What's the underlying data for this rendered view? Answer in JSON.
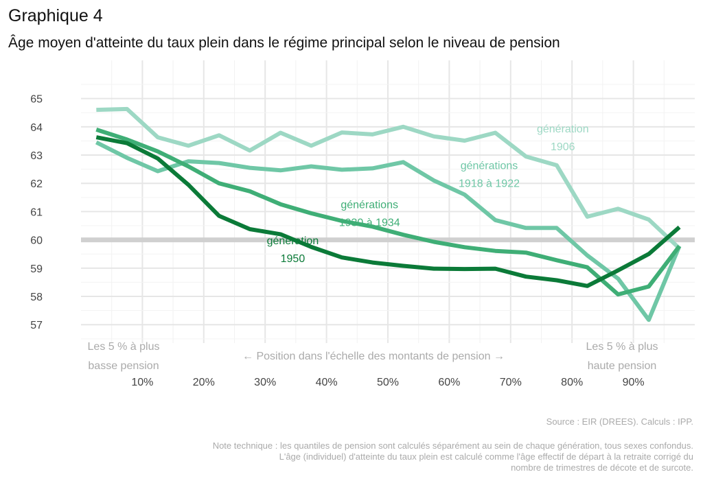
{
  "header": {
    "title": "Graphique 4",
    "subtitle": "Âge moyen d'atteinte du taux plein dans le régime principal selon le niveau de pension"
  },
  "chart_data": {
    "type": "line",
    "x": [
      2.5,
      7.5,
      12.5,
      17.5,
      22.5,
      27.5,
      32.5,
      37.5,
      42.5,
      47.5,
      52.5,
      57.5,
      62.5,
      67.5,
      72.5,
      77.5,
      82.5,
      87.5,
      92.5,
      97.5
    ],
    "x_ticks": [
      10,
      20,
      30,
      40,
      50,
      60,
      70,
      80,
      90
    ],
    "x_tick_labels": [
      "10%",
      "20%",
      "30%",
      "40%",
      "50%",
      "60%",
      "70%",
      "80%",
      "90%"
    ],
    "xlim": [
      0,
      100
    ],
    "y_ticks": [
      57,
      58,
      59,
      60,
      61,
      62,
      63,
      64,
      65
    ],
    "y_tick_labels": [
      "57",
      "58",
      "59",
      "60",
      "61",
      "62",
      "63",
      "64",
      "65"
    ],
    "ylim": [
      56.35,
      66.35
    ],
    "grid": true,
    "reference_line": {
      "y": 60,
      "color": "#d0d0d0"
    },
    "series": [
      {
        "name_lines": [
          "génération",
          "1906"
        ],
        "color": "#9dd8c4",
        "label_pos": [
          78.5,
          63.8
        ],
        "values": [
          64.6,
          64.63,
          63.63,
          63.33,
          63.7,
          63.16,
          63.79,
          63.33,
          63.8,
          63.73,
          64.0,
          63.66,
          63.51,
          63.79,
          62.95,
          62.64,
          60.82,
          61.1,
          60.72,
          59.7
        ]
      },
      {
        "name_lines": [
          "générations",
          "1918 à 1922"
        ],
        "color": "#6fc7a6",
        "label_pos": [
          66.5,
          62.5
        ],
        "values": [
          63.45,
          62.9,
          62.43,
          62.78,
          62.72,
          62.55,
          62.46,
          62.6,
          62.48,
          62.53,
          62.75,
          62.1,
          61.6,
          60.7,
          60.42,
          60.42,
          59.45,
          58.63,
          57.17,
          59.78
        ]
      },
      {
        "name_lines": [
          "générations",
          "1930 à 1934"
        ],
        "color": "#3fae76",
        "label_pos": [
          47.0,
          61.12
        ],
        "values": [
          63.9,
          63.55,
          63.13,
          62.6,
          62.0,
          61.72,
          61.26,
          60.94,
          60.67,
          60.47,
          60.18,
          59.93,
          59.74,
          59.61,
          59.55,
          59.28,
          59.03,
          58.07,
          58.35,
          59.78
        ]
      },
      {
        "name_lines": [
          "génération",
          "1950"
        ],
        "color": "#0b7a38",
        "label_pos": [
          34.5,
          59.85
        ],
        "values": [
          63.63,
          63.42,
          62.88,
          61.95,
          60.85,
          60.38,
          60.2,
          59.75,
          59.38,
          59.2,
          59.08,
          58.98,
          58.97,
          58.98,
          58.7,
          58.57,
          58.37,
          58.92,
          59.5,
          60.45
        ]
      }
    ],
    "annotations": {
      "left_lines": [
        "Les 5 % à plus",
        "basse pension"
      ],
      "center": "← Position dans l'échelle des montants de pension →",
      "right_lines": [
        "Les 5 % à plus",
        "haute pension"
      ]
    }
  },
  "footer": {
    "source": "Source : EIR (DREES). Calculs : IPP.",
    "notes": [
      "Note technique : les quantiles de pension sont calculés séparément au sein de chaque génération, tous sexes confondus.",
      "L'âge (individuel) d'atteinte du taux plein est calculé comme l'âge effectif de départ à la retraite corrigé du",
      "nombre de trimestres de décote et de surcote."
    ]
  }
}
